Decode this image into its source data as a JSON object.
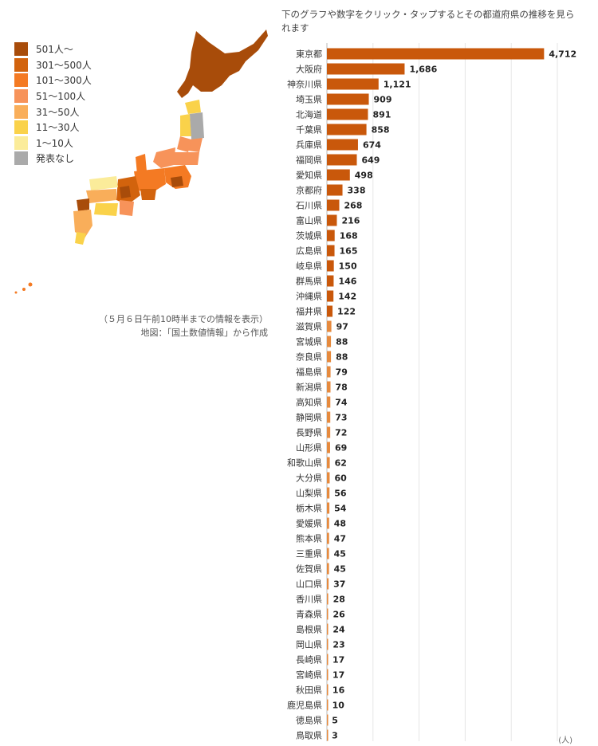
{
  "header": {
    "instruction": "下のグラフや数字をクリック・タップするとその都道府県の推移を見られます"
  },
  "legend": {
    "items": [
      {
        "label": "501人〜",
        "color": "#a84c0a"
      },
      {
        "label": "301〜500人",
        "color": "#d2630d"
      },
      {
        "label": "101〜300人",
        "color": "#f47a23"
      },
      {
        "label": "51〜100人",
        "color": "#f7935a"
      },
      {
        "label": "31〜50人",
        "color": "#f9ae5a"
      },
      {
        "label": "11〜30人",
        "color": "#fad24a"
      },
      {
        "label": "1〜10人",
        "color": "#fbec9a"
      },
      {
        "label": "発表なし",
        "color": "#aaaaaa"
      }
    ]
  },
  "map_notes": {
    "timestamp": "（５月６日午前10時半までの情報を表示）",
    "source": "地図：「国土数値情報」から作成"
  },
  "chart_data": {
    "type": "bar",
    "orientation": "horizontal",
    "categories": [
      "東京都",
      "大阪府",
      "神奈川県",
      "埼玉県",
      "北海道",
      "千葉県",
      "兵庫県",
      "福岡県",
      "愛知県",
      "京都府",
      "石川県",
      "富山県",
      "茨城県",
      "広島県",
      "岐阜県",
      "群馬県",
      "沖縄県",
      "福井県",
      "滋賀県",
      "宮城県",
      "奈良県",
      "福島県",
      "新潟県",
      "高知県",
      "静岡県",
      "長野県",
      "山形県",
      "和歌山県",
      "大分県",
      "山梨県",
      "栃木県",
      "愛媛県",
      "熊本県",
      "三重県",
      "佐賀県",
      "山口県",
      "香川県",
      "青森県",
      "島根県",
      "岡山県",
      "長崎県",
      "宮崎県",
      "秋田県",
      "鹿児島県",
      "徳島県",
      "鳥取県"
    ],
    "values": [
      4712,
      1686,
      1121,
      909,
      891,
      858,
      674,
      649,
      498,
      338,
      268,
      216,
      168,
      165,
      150,
      146,
      142,
      122,
      97,
      88,
      88,
      79,
      78,
      74,
      73,
      72,
      69,
      62,
      60,
      56,
      54,
      48,
      47,
      45,
      45,
      37,
      28,
      26,
      24,
      23,
      17,
      17,
      16,
      10,
      5,
      3
    ],
    "value_labels": [
      "4,712",
      "1,686",
      "1,121",
      "909",
      "891",
      "858",
      "674",
      "649",
      "498",
      "338",
      "268",
      "216",
      "168",
      "165",
      "150",
      "146",
      "142",
      "122",
      "97",
      "88",
      "88",
      "79",
      "78",
      "74",
      "73",
      "72",
      "69",
      "62",
      "60",
      "56",
      "54",
      "48",
      "47",
      "45",
      "45",
      "37",
      "28",
      "26",
      "24",
      "23",
      "17",
      "17",
      "16",
      "10",
      "5",
      "3"
    ],
    "xlim": [
      0,
      5000
    ],
    "grid": true,
    "unit_label": "(人)",
    "colors": {
      "dark": "#c9580b",
      "light": "#e68a3e",
      "light_threshold": 100
    }
  }
}
